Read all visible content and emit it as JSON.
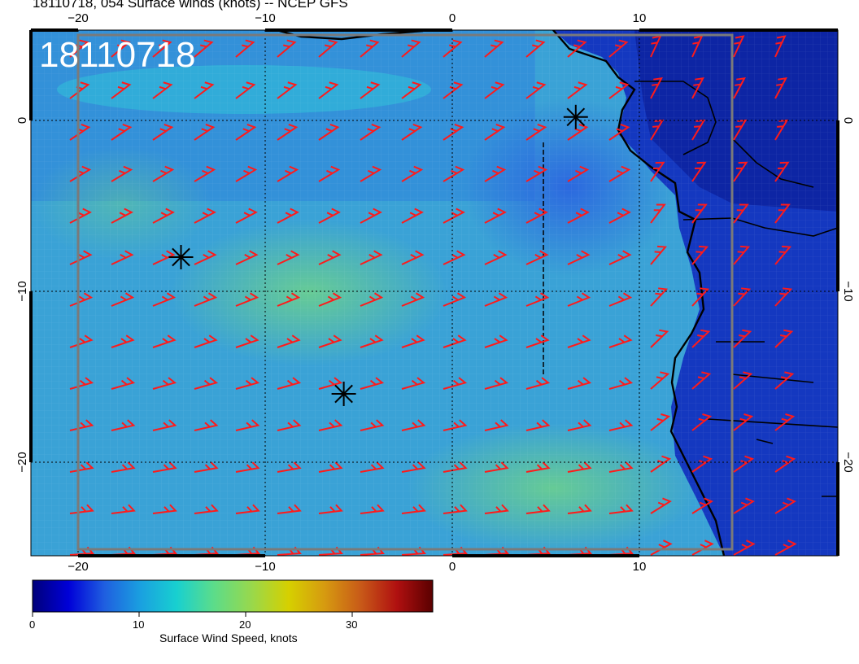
{
  "title": "18110718, 054 Surface winds (knots) -- NCEP GFS",
  "stamp": "18110718",
  "x_axis": {
    "top_ticks": [
      "−20",
      "−10",
      "0",
      "10"
    ],
    "bottom_ticks": [
      "−20",
      "−10",
      "0",
      "10"
    ]
  },
  "y_axis": {
    "left_ticks": [
      "0",
      "−10",
      "−20"
    ],
    "right_ticks": [
      "0",
      "−10",
      "−20"
    ]
  },
  "colorbar": {
    "ticks": [
      "0",
      "10",
      "20",
      "30"
    ],
    "title": "Surface Wind Speed, knots",
    "colors": [
      "#00007a",
      "#0000d8",
      "#1f5fe0",
      "#1aa0e0",
      "#18d0d0",
      "#5adc8c",
      "#9ad84a",
      "#d6d000",
      "#d69a10",
      "#c85a18",
      "#b01010",
      "#5a0000"
    ]
  },
  "colors": {
    "barb": "#ff1a1a",
    "ocean_base": "#3fa8d8",
    "land_base": "#1a3fc8",
    "coast": "#000000",
    "marker": "#000000"
  },
  "markers": [
    {
      "lon": -14.5,
      "lat": -8.0,
      "icon": "asterisk-marker-icon"
    },
    {
      "lon": -5.8,
      "lat": -16.0,
      "icon": "asterisk-marker-icon"
    },
    {
      "lon": 6.6,
      "lat": 0.2,
      "icon": "asterisk-marker-icon"
    }
  ]
}
